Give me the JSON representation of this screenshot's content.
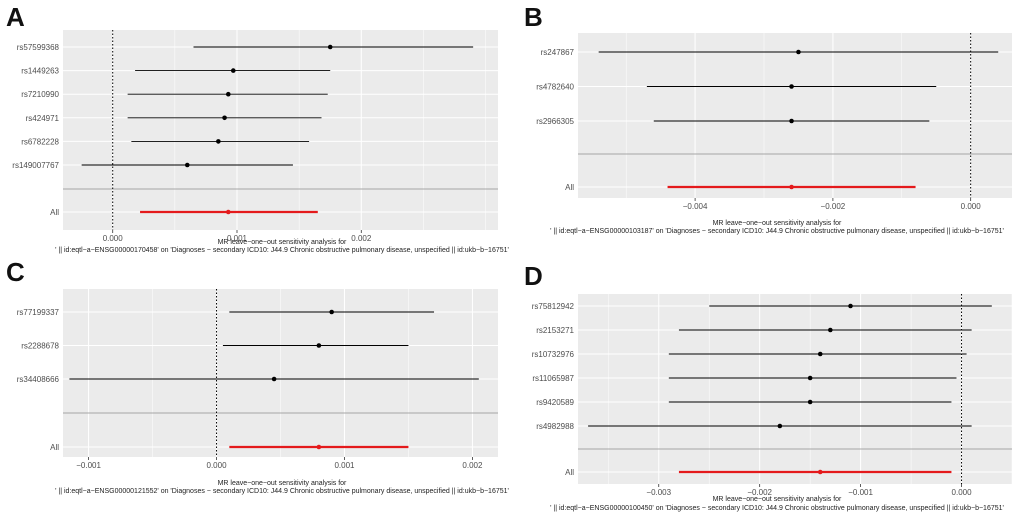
{
  "chart_data": [
    {
      "type": "scatter",
      "panel_letter": "A",
      "caption_line1": "MR leave−one−out sensitivity analysis for",
      "caption_line2": "' || id:eqtl−a−ENSG00000170458' on 'Diagnoses − secondary ICD10: J44.9 Chronic obstructive pulmonary disease, unspecified || id:ukb−b−16751'",
      "xlim": [
        -0.0004,
        0.0031
      ],
      "xticks": [
        {
          "v": 0,
          "label": "0.000"
        },
        {
          "v": 0.001,
          "label": "0.001"
        },
        {
          "v": 0.002,
          "label": "0.002"
        }
      ],
      "rows": [
        {
          "label": "rs57599368",
          "est": 0.00175,
          "lo": 0.00065,
          "hi": 0.0029
        },
        {
          "label": "rs1449263",
          "est": 0.00097,
          "lo": 0.00018,
          "hi": 0.00175
        },
        {
          "label": "rs7210990",
          "est": 0.00093,
          "lo": 0.00012,
          "hi": 0.00173
        },
        {
          "label": "rs424971",
          "est": 0.0009,
          "lo": 0.00012,
          "hi": 0.00168
        },
        {
          "label": "rs6782228",
          "est": 0.00085,
          "lo": 0.00015,
          "hi": 0.00158
        },
        {
          "label": "rs149007767",
          "est": 0.0006,
          "lo": -0.00025,
          "hi": 0.00145
        }
      ],
      "all": {
        "label": "All",
        "est": 0.00093,
        "lo": 0.00022,
        "hi": 0.00165
      }
    },
    {
      "type": "scatter",
      "panel_letter": "B",
      "caption_line1": "MR leave−one−out sensitivity analysis for",
      "caption_line2": "' || id:eqtl−a−ENSG00000103187' on 'Diagnoses − secondary ICD10: J44.9 Chronic obstructive pulmonary disease, unspecified || id:ukb−b−16751'",
      "xlim": [
        -0.0057,
        0.0006
      ],
      "xticks": [
        {
          "v": -0.004,
          "label": "−0.004"
        },
        {
          "v": -0.002,
          "label": "−0.002"
        },
        {
          "v": 0,
          "label": "0.000"
        }
      ],
      "rows": [
        {
          "label": "rs247867",
          "est": -0.0025,
          "lo": -0.0054,
          "hi": 0.0004
        },
        {
          "label": "rs4782640",
          "est": -0.0026,
          "lo": -0.0047,
          "hi": -0.0005
        },
        {
          "label": "rs2966305",
          "est": -0.0026,
          "lo": -0.0046,
          "hi": -0.0006
        }
      ],
      "all": {
        "label": "All",
        "est": -0.0026,
        "lo": -0.0044,
        "hi": -0.0008
      }
    },
    {
      "type": "scatter",
      "panel_letter": "C",
      "caption_line1": "MR leave−one−out sensitivity analysis for",
      "caption_line2": "' || id:eqtl−a−ENSG00000121552' on 'Diagnoses − secondary ICD10: J44.9 Chronic obstructive pulmonary disease, unspecified || id:ukb−b−16751'",
      "xlim": [
        -0.0012,
        0.0022
      ],
      "xticks": [
        {
          "v": -0.001,
          "label": "−0.001"
        },
        {
          "v": 0,
          "label": "0.000"
        },
        {
          "v": 0.001,
          "label": "0.001"
        },
        {
          "v": 0.002,
          "label": "0.002"
        }
      ],
      "rows": [
        {
          "label": "rs77199337",
          "est": 0.0009,
          "lo": 0.0001,
          "hi": 0.0017
        },
        {
          "label": "rs2288678",
          "est": 0.0008,
          "lo": 5e-05,
          "hi": 0.0015
        },
        {
          "label": "rs34408666",
          "est": 0.00045,
          "lo": -0.00115,
          "hi": 0.00205
        }
      ],
      "all": {
        "label": "All",
        "est": 0.0008,
        "lo": 0.0001,
        "hi": 0.0015
      }
    },
    {
      "type": "scatter",
      "panel_letter": "D",
      "caption_line1": "MR leave−one−out sensitivity analysis for",
      "caption_line2": "' || id:eqtl−a−ENSG00000100450' on 'Diagnoses − secondary ICD10: J44.9 Chronic obstructive pulmonary disease, unspecified || id:ukb−b−16751'",
      "xlim": [
        -0.0038,
        0.0005
      ],
      "xticks": [
        {
          "v": -0.003,
          "label": "−0.003"
        },
        {
          "v": -0.002,
          "label": "−0.002"
        },
        {
          "v": -0.001,
          "label": "−0.001"
        },
        {
          "v": 0,
          "label": "0.000"
        }
      ],
      "rows": [
        {
          "label": "rs75812942",
          "est": -0.0011,
          "lo": -0.0025,
          "hi": 0.0003
        },
        {
          "label": "rs2153271",
          "est": -0.0013,
          "lo": -0.0028,
          "hi": 0.0001
        },
        {
          "label": "rs10732976",
          "est": -0.0014,
          "lo": -0.0029,
          "hi": 5e-05
        },
        {
          "label": "rs11065987",
          "est": -0.0015,
          "lo": -0.0029,
          "hi": -5e-05
        },
        {
          "label": "rs9420589",
          "est": -0.0015,
          "lo": -0.0029,
          "hi": -0.0001
        },
        {
          "label": "rs4982988",
          "est": -0.0018,
          "lo": -0.0037,
          "hi": 0.0001
        }
      ],
      "all": {
        "label": "All",
        "est": -0.0014,
        "lo": -0.0028,
        "hi": -0.0001
      }
    }
  ],
  "colors": {
    "panel_bg": "#ebebeb",
    "grid": "#ffffff",
    "estimate": "#000000",
    "overall": "#e41a1c",
    "separator": "#a6a6a6"
  }
}
